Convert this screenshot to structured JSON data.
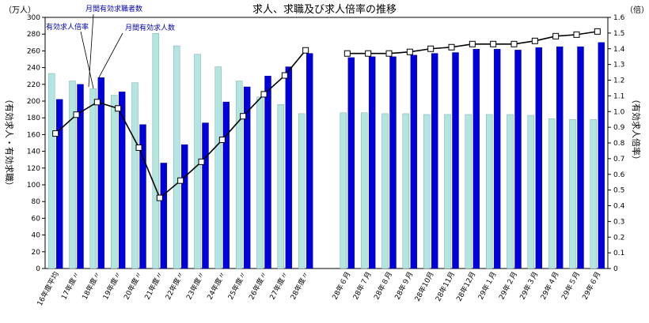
{
  "chart_data": {
    "type": "bar",
    "title": "求人、求職及び求人倍率の推移",
    "left_unit": "（万人）",
    "right_unit": "（倍）",
    "left_axis_label": "（有効求人・有効求職）",
    "right_axis_label": "（有効求人倍率）",
    "left_ylim": [
      0,
      300
    ],
    "left_ticks": [
      0,
      20,
      40,
      60,
      80,
      100,
      120,
      140,
      160,
      180,
      200,
      220,
      240,
      260,
      280,
      300
    ],
    "right_ylim": [
      0,
      1.6
    ],
    "right_ticks": [
      "0",
      "0.1",
      "0.2",
      "0.3",
      "0.4",
      "0.5",
      "0.6",
      "0.7",
      "0.8",
      "0.9",
      "1.0",
      "1.1",
      "1.2",
      "1.3",
      "1.4",
      "1.5",
      "1.6"
    ],
    "categories": [
      "16年度平均",
      "17年度〃",
      "18年度〃",
      "19年度〃",
      "20年度〃",
      "21年度〃",
      "22年度〃",
      "23年度〃",
      "24年度〃",
      "25年度〃",
      "26年度〃",
      "27年度〃",
      "28年度〃",
      "",
      "28年６月",
      "28年７月",
      "28年８月",
      "28年９月",
      "28年10月",
      "28年11月",
      "28年12月",
      "29年１月",
      "29年２月",
      "29年３月",
      "29年４月",
      "29年５月",
      "29年６月"
    ],
    "series": [
      {
        "name": "月間有効求職者数",
        "axis": "left",
        "color": "#b3e6e0",
        "values": [
          233,
          224,
          215,
          207,
          222,
          281,
          266,
          256,
          241,
          224,
          205,
          196,
          185,
          null,
          186,
          186,
          185,
          185,
          184,
          184,
          184,
          184,
          184,
          183,
          179,
          178,
          178
        ]
      },
      {
        "name": "月間有効求人数",
        "axis": "left",
        "color": "#0000dd",
        "values": [
          202,
          220,
          228,
          211,
          172,
          126,
          148,
          174,
          199,
          217,
          230,
          241,
          257,
          null,
          252,
          253,
          253,
          255,
          257,
          258,
          262,
          262,
          261,
          264,
          265,
          265,
          270
        ]
      },
      {
        "name": "有効求人倍率",
        "axis": "right",
        "type": "line",
        "color": "#000000",
        "values": [
          0.86,
          0.98,
          1.06,
          1.02,
          0.77,
          0.45,
          0.56,
          0.68,
          0.82,
          0.97,
          1.11,
          1.23,
          1.39,
          null,
          1.37,
          1.37,
          1.37,
          1.38,
          1.4,
          1.41,
          1.43,
          1.43,
          1.43,
          1.45,
          1.48,
          1.49,
          1.51
        ]
      }
    ],
    "grid": false,
    "legend": "annotations"
  }
}
